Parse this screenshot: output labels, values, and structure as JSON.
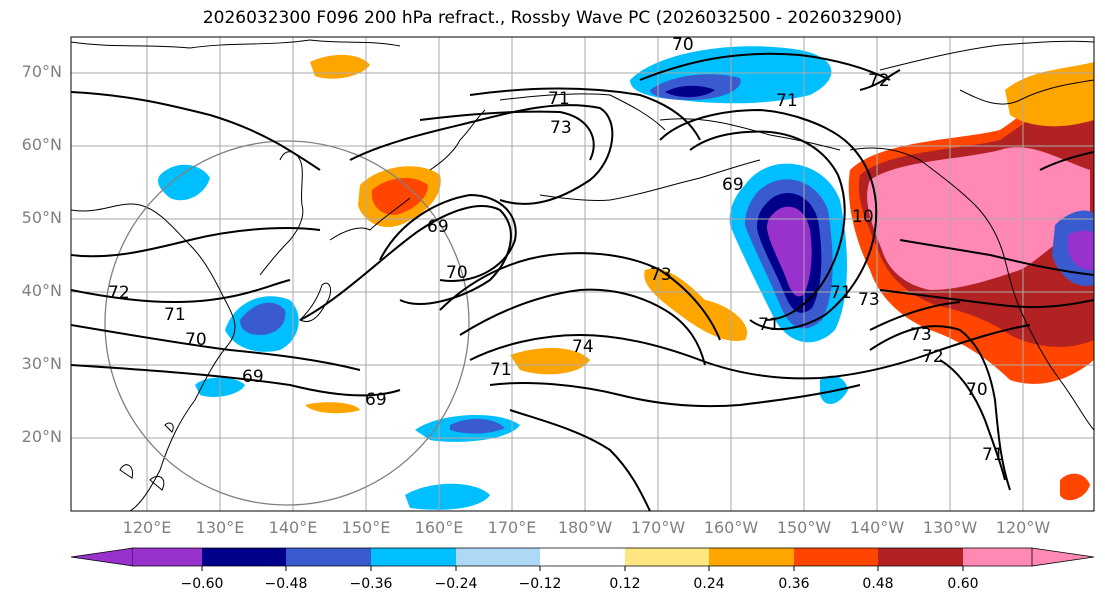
{
  "title": "2026032300 F096 200 hPa refract., Rossby Wave PC (2026032500 - 2026032900)",
  "lat_labels": [
    "70°N",
    "60°N",
    "50°N",
    "40°N",
    "30°N",
    "20°N"
  ],
  "lon_labels": [
    "120°E",
    "130°E",
    "140°E",
    "150°E",
    "160°E",
    "170°E",
    "180°W",
    "170°W",
    "160°W",
    "150°W",
    "140°W",
    "130°W",
    "120°W"
  ],
  "contour_labels": [
    "70",
    "72",
    "71",
    "71",
    "73",
    "69",
    "69",
    "70",
    "71",
    "10",
    "72",
    "71",
    "70",
    "69",
    "69",
    "73",
    "74",
    "71",
    "73",
    "72",
    "70",
    "71",
    "73",
    "71"
  ],
  "colorbar": {
    "ticks": [
      "−0.60",
      "−0.48",
      "−0.36",
      "−0.24",
      "−0.12",
      "0.12",
      "0.24",
      "0.36",
      "0.48",
      "0.60"
    ],
    "colors": [
      "#9932CC",
      "#00008B",
      "#3A5BD0",
      "#00BFFF",
      "#ADD8F6",
      "#FFFFFF",
      "#FFE680",
      "#FFA500",
      "#FF4500",
      "#B22222",
      "#FF88B5"
    ]
  }
}
